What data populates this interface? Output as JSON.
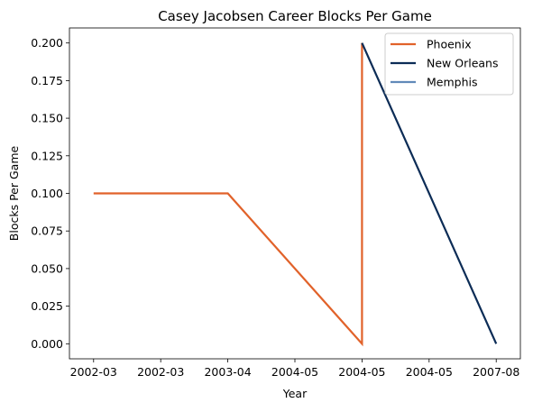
{
  "chart_data": {
    "type": "line",
    "title": "Casey Jacobsen Career Blocks Per Game",
    "xlabel": "Year",
    "ylabel": "Blocks Per Game",
    "x_tick_labels": [
      "2002-03",
      "2002-03",
      "2003-04",
      "2004-05",
      "2004-05",
      "2004-05",
      "2007-08"
    ],
    "x_tick_values": [
      0,
      0.5,
      1,
      1.5,
      2,
      2.5,
      3
    ],
    "ylim": [
      -0.01,
      0.21
    ],
    "y_ticks": [
      0.0,
      0.025,
      0.05,
      0.075,
      0.1,
      0.125,
      0.15,
      0.175,
      0.2
    ],
    "y_tick_labels": [
      "0.000",
      "0.025",
      "0.050",
      "0.075",
      "0.100",
      "0.125",
      "0.150",
      "0.175",
      "0.200"
    ],
    "xlim": [
      -0.18,
      3.18
    ],
    "grid": false,
    "legend_position": "top-right",
    "series": [
      {
        "name": "Phoenix",
        "color": "#e1622a",
        "points": [
          {
            "season": "2002-03",
            "value": 0.1
          },
          {
            "season": "2003-04",
            "value": 0.1
          },
          {
            "season": "2004-05",
            "value": 0.0
          },
          {
            "season": "2004-05",
            "value": 0.2
          }
        ],
        "x_index": [
          0,
          1,
          2,
          2
        ]
      },
      {
        "name": "New Orleans",
        "color": "#0c2c56",
        "points": [
          {
            "season": "2004-05",
            "value": 0.2
          },
          {
            "season": "2007-08",
            "value": 0.0
          }
        ],
        "x_index": [
          2,
          3
        ]
      },
      {
        "name": "Memphis",
        "color": "#6189b9",
        "points": [],
        "x_index": []
      }
    ]
  }
}
